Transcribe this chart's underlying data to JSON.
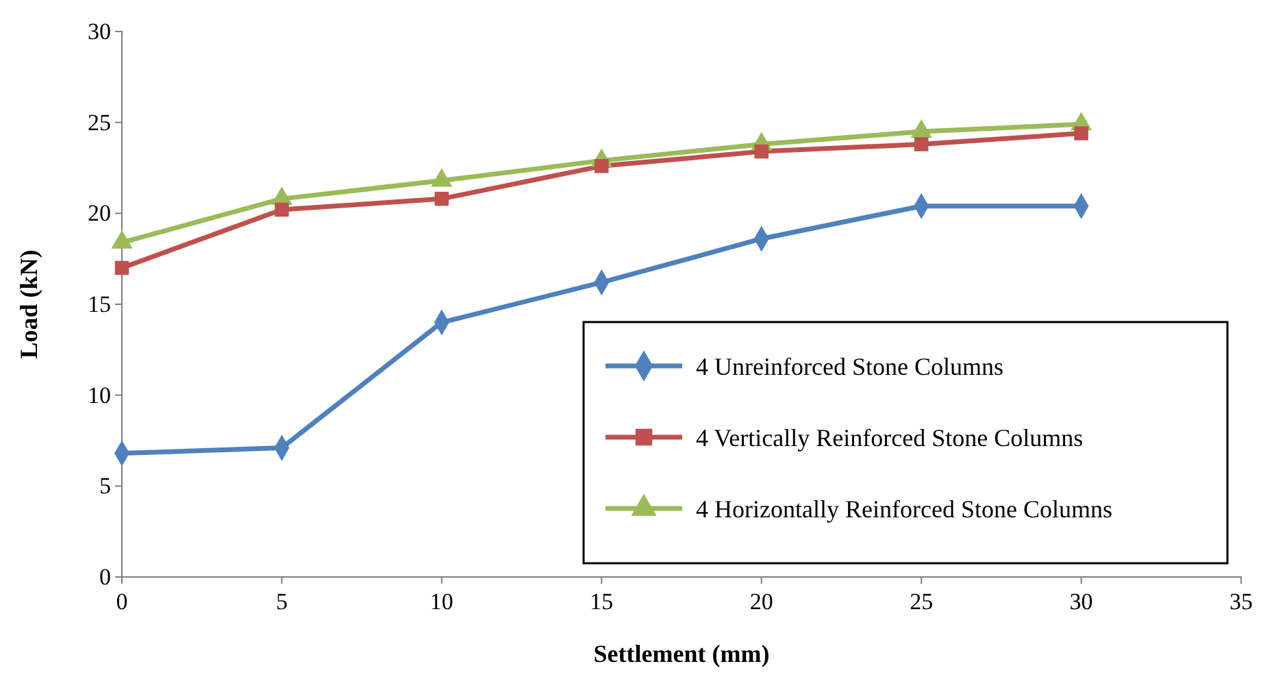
{
  "chart_data": {
    "type": "line",
    "xlabel": "Settlement (mm)",
    "ylabel": "Load (kN)",
    "x": [
      0,
      5,
      10,
      15,
      20,
      25,
      30
    ],
    "xlim": [
      0,
      35
    ],
    "xticks": [
      0,
      5,
      10,
      15,
      20,
      25,
      30,
      35
    ],
    "ylim": [
      0,
      30
    ],
    "yticks": [
      0,
      5,
      10,
      15,
      20,
      25,
      30
    ],
    "legend": "bottom right",
    "grid": false,
    "series": [
      {
        "name": "4 Unreinforced Stone Columns",
        "color": "#4f81bd",
        "marker": "diamond",
        "values": [
          6.8,
          7.1,
          14.0,
          16.2,
          18.6,
          20.4,
          20.4
        ]
      },
      {
        "name": "4 Vertically Reinforced Stone Columns",
        "color": "#c0504d",
        "marker": "square",
        "values": [
          17.0,
          20.2,
          20.8,
          22.6,
          23.4,
          23.8,
          24.4
        ]
      },
      {
        "name": "4 Horizontally Reinforced Stone Columns",
        "color": "#9bbb59",
        "marker": "triangle",
        "values": [
          18.4,
          20.8,
          21.8,
          22.9,
          23.8,
          24.5,
          24.9
        ]
      }
    ]
  }
}
